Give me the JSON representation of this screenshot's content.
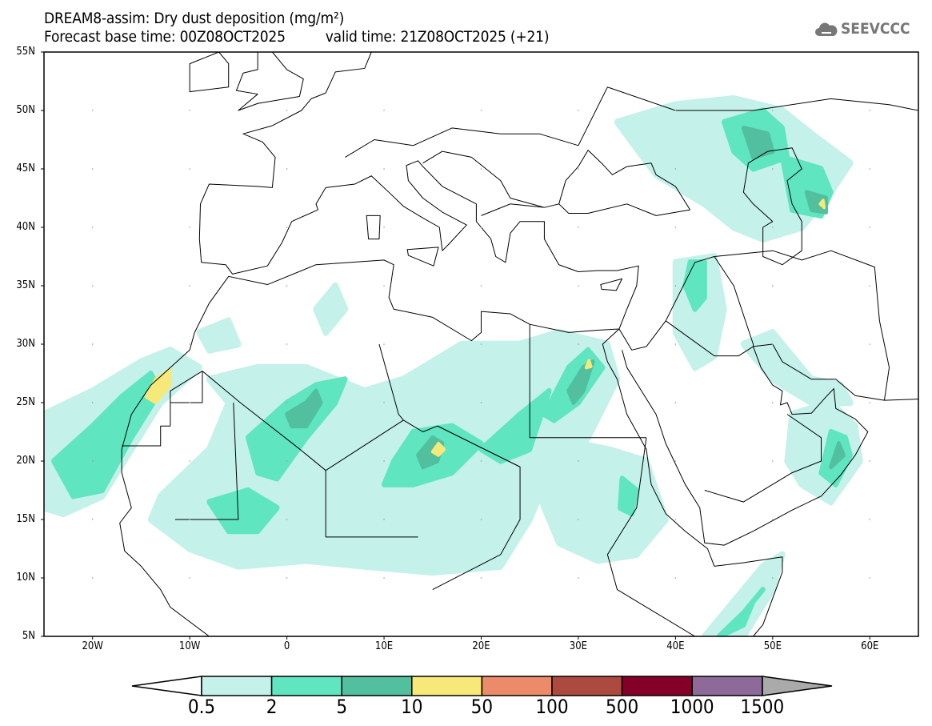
{
  "title": {
    "line1": "DREAM8-assim: Dry dust deposition (mg/m²)",
    "base_time": "Forecast base time: 00Z08OCT2025",
    "valid_time": "valid time: 21Z08OCT2025 (+21)"
  },
  "logo": {
    "text": "SEEVCCC",
    "icon": "cloud-icon"
  },
  "axes": {
    "lat_labels": [
      "55N",
      "50N",
      "45N",
      "40N",
      "35N",
      "30N",
      "25N",
      "20N",
      "15N",
      "10N",
      "5N"
    ],
    "lon_labels": [
      "20W",
      "10W",
      "0",
      "10E",
      "20E",
      "30E",
      "40E",
      "50E",
      "60E"
    ],
    "lon_range": [
      -25,
      65
    ],
    "lat_range": [
      5,
      55
    ]
  },
  "legend": {
    "labels": [
      "0.5",
      "2",
      "5",
      "10",
      "50",
      "100",
      "500",
      "1000",
      "1500"
    ],
    "colors": [
      "#c4f1ea",
      "#5fe5c0",
      "#52bf9e",
      "#f7e87a",
      "#ec8a6a",
      "#ad4a40",
      "#850028",
      "#8e6a9a"
    ],
    "over_color": "#aaaaaa",
    "under_color": "#ffffff"
  }
}
